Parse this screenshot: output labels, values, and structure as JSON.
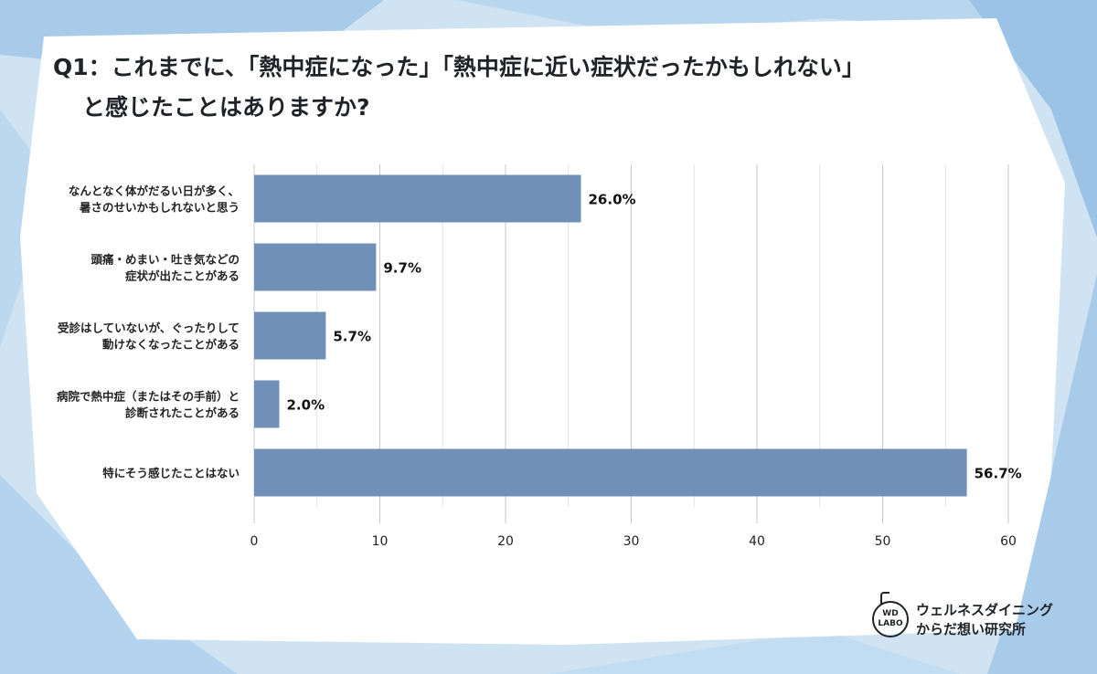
{
  "title": {
    "line1": "Q1：これまでに、「熱中症になった」「熱中症に近い症状だったかもしれない」",
    "line2": "と感じたことはありますか?"
  },
  "chart_data": {
    "type": "bar",
    "orientation": "horizontal",
    "categories": [
      [
        "なんとなく体がだるい日が多く、",
        "暑さのせいかもしれないと思う"
      ],
      [
        "頭痛・めまい・吐き気などの",
        "症状が出たことがある"
      ],
      [
        "受診はしていないが、ぐったりして",
        "動けなくなったことがある"
      ],
      [
        "病院で熱中症（またはその手前）と",
        "診断されたことがある"
      ],
      [
        "特にそう感じたことはない"
      ]
    ],
    "values": [
      26.0,
      9.7,
      5.7,
      2.0,
      56.7
    ],
    "value_labels": [
      "26.0%",
      "9.7%",
      "5.7%",
      "2.0%",
      "56.7%"
    ],
    "xlim": [
      0,
      60
    ],
    "xticks": [
      0,
      10,
      20,
      30,
      40,
      50,
      60
    ],
    "grid": true,
    "bar_color": "#7090b8"
  },
  "logo": {
    "mark_line1": "WD",
    "mark_line2": "LABO",
    "text_line1": "ウェルネスダイニング",
    "text_line2": "からだ想い研究所"
  },
  "colors": {
    "background_panel": "#ffffff",
    "frame_blue": "#a8c8e8",
    "text": "#1f2328"
  }
}
